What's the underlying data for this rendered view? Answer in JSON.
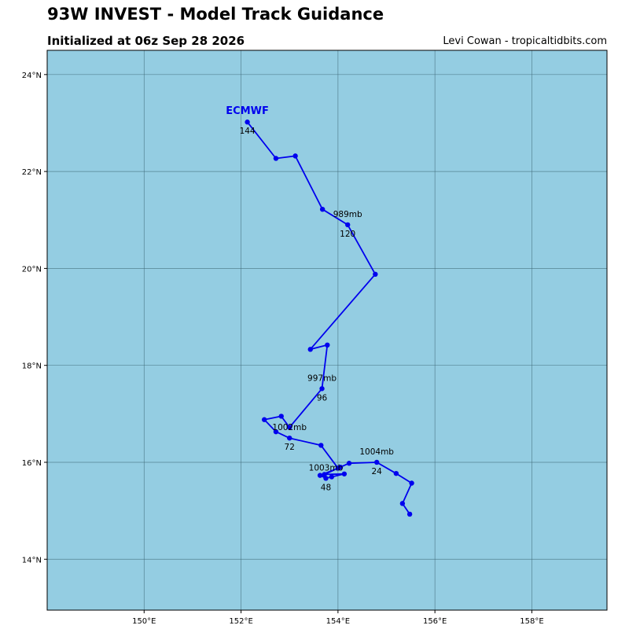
{
  "header": {
    "title": "93W INVEST - Model Track Guidance",
    "subtitle": "Initialized at 06z Sep 28 2026",
    "credit": "Levi Cowan - tropicaltidbits.com"
  },
  "colors": {
    "ocean": "#94cde2",
    "track": "#0000ee",
    "grid": "#3f6a78"
  },
  "chart_data": {
    "type": "line",
    "xlim": [
      148.0,
      159.55
    ],
    "ylim": [
      12.95,
      24.5
    ],
    "x_ticks": [
      150,
      152,
      154,
      156,
      158
    ],
    "x_tick_labels": [
      "150°E",
      "152°E",
      "154°E",
      "156°E",
      "158°E"
    ],
    "y_ticks": [
      14,
      16,
      18,
      20,
      22,
      24
    ],
    "y_tick_labels": [
      "14°N",
      "16°N",
      "18°N",
      "20°N",
      "22°N",
      "24°N"
    ],
    "grid": true,
    "series": [
      {
        "name": "ECMWF",
        "points": [
          {
            "lon": 155.48,
            "lat": 14.93
          },
          {
            "lon": 155.33,
            "lat": 15.15
          },
          {
            "lon": 155.52,
            "lat": 15.57
          },
          {
            "lon": 155.2,
            "lat": 15.77
          },
          {
            "lon": 154.8,
            "lat": 16.0
          },
          {
            "lon": 154.23,
            "lat": 15.98
          },
          {
            "lon": 154.05,
            "lat": 15.9
          },
          {
            "lon": 153.72,
            "lat": 15.75
          },
          {
            "lon": 154.13,
            "lat": 15.76
          },
          {
            "lon": 153.87,
            "lat": 15.7
          },
          {
            "lon": 153.75,
            "lat": 15.67
          },
          {
            "lon": 153.63,
            "lat": 15.73
          },
          {
            "lon": 154.0,
            "lat": 15.88
          },
          {
            "lon": 153.65,
            "lat": 16.35
          },
          {
            "lon": 153.0,
            "lat": 16.5
          },
          {
            "lon": 152.72,
            "lat": 16.63
          },
          {
            "lon": 152.48,
            "lat": 16.88
          },
          {
            "lon": 152.83,
            "lat": 16.95
          },
          {
            "lon": 153.0,
            "lat": 16.72
          },
          {
            "lon": 153.67,
            "lat": 17.52
          },
          {
            "lon": 153.78,
            "lat": 18.42
          },
          {
            "lon": 153.43,
            "lat": 18.33
          },
          {
            "lon": 154.77,
            "lat": 19.88
          },
          {
            "lon": 154.2,
            "lat": 20.9
          },
          {
            "lon": 153.68,
            "lat": 21.22
          },
          {
            "lon": 153.12,
            "lat": 22.32
          },
          {
            "lon": 152.72,
            "lat": 22.27
          },
          {
            "lon": 152.13,
            "lat": 23.02
          }
        ],
        "annotations": [
          {
            "lon": 154.8,
            "lat": 16.0,
            "hour": "24",
            "pressure": "1004mb"
          },
          {
            "lon": 153.75,
            "lat": 15.67,
            "hour": "48",
            "pressure": "1003mb"
          },
          {
            "lon": 153.0,
            "lat": 16.5,
            "hour": "72",
            "pressure": "1002mb"
          },
          {
            "lon": 153.67,
            "lat": 17.52,
            "hour": "96",
            "pressure": "997mb"
          },
          {
            "lon": 154.2,
            "lat": 20.9,
            "hour": "120",
            "pressure": "989mb"
          },
          {
            "lon": 152.13,
            "lat": 23.02,
            "hour": "144",
            "pressure": ""
          }
        ],
        "model_label": {
          "text": "ECMWF",
          "lon": 152.13,
          "lat": 23.02
        }
      }
    ]
  }
}
